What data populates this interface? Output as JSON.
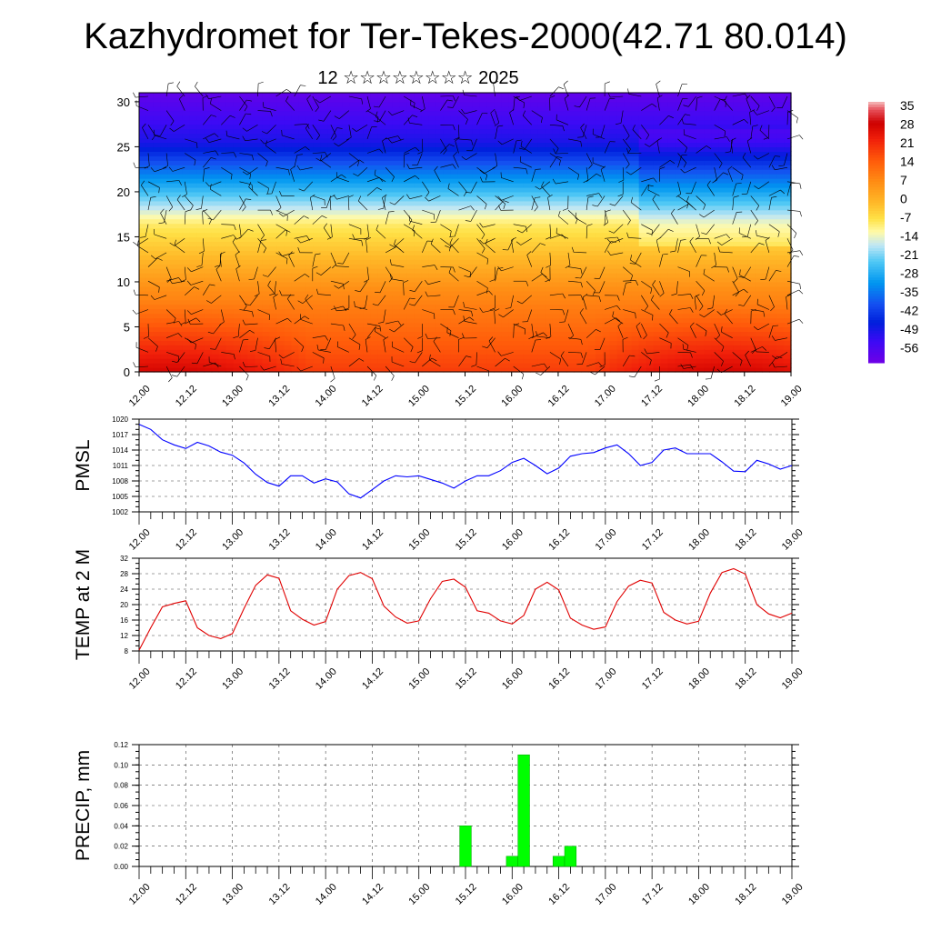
{
  "header": {
    "title": "Kazhydromet for Ter-Tekes-2000(42.71 80.014)",
    "subtitle": "12 ☆☆☆☆☆☆☆☆ 2025"
  },
  "colors": {
    "pmsl_line": "#0000ff",
    "temp_line": "#e00000",
    "precip_bar": "#00ff00",
    "precip_bar_edge": "#00a000"
  },
  "chart_data": [
    {
      "id": "height-profile",
      "type": "heatmap",
      "title": "",
      "xlabel": "",
      "ylabel": "",
      "x_ticks": [
        "12.00",
        "12.12",
        "13.00",
        "13.12",
        "14.00",
        "14.12",
        "15.00",
        "15.12",
        "16.00",
        "16.12",
        "17.00",
        "17.12",
        "18.00",
        "18.12",
        "19.00"
      ],
      "y_ticks": [
        0,
        5,
        10,
        15,
        20,
        25,
        30
      ],
      "ylim": [
        0,
        31
      ],
      "colorbar": {
        "labels": [
          "35",
          "28",
          "21",
          "14",
          "7",
          "0",
          "-7",
          "-14",
          "-21",
          "-28",
          "-35",
          "-42",
          "-49",
          "-56"
        ],
        "range": [
          -60,
          38
        ]
      },
      "wind_barbs": true
    },
    {
      "id": "pmsl",
      "type": "line",
      "ylabel": "PMSL",
      "ylim": [
        1002,
        1020
      ],
      "y_ticks": [
        "1002",
        "1005",
        "1008",
        "1011",
        "1014",
        "1017",
        "1020"
      ],
      "x_ticks": [
        "12.00",
        "12.12",
        "13.00",
        "13.12",
        "14.00",
        "14.12",
        "15.00",
        "15.12",
        "16.00",
        "16.12",
        "17.00",
        "17.12",
        "18.00",
        "18.12",
        "19.00"
      ],
      "x_step_hours": 3,
      "series": [
        {
          "values": [
            1019,
            1018,
            1016,
            1015,
            1014.3,
            1015.5,
            1014.8,
            1013.6,
            1013,
            1011.5,
            1009.3,
            1007.7,
            1007,
            1009,
            1009,
            1007.6,
            1008.4,
            1007.8,
            1005.5,
            1004.7,
            1006.3,
            1008,
            1009,
            1008.8,
            1009,
            1008.3,
            1007.6,
            1006.6,
            1008,
            1009,
            1009,
            1010,
            1011.6,
            1012.4,
            1011,
            1009.4,
            1010.5,
            1012.8,
            1013.3,
            1013.5,
            1014.4,
            1015,
            1013.3,
            1011,
            1011.6,
            1014,
            1014.4,
            1013.3,
            1013.3,
            1013.3,
            1011.7,
            1009.9,
            1009.8,
            1012,
            1011.3,
            1010.3,
            1011
          ]
        }
      ]
    },
    {
      "id": "temp",
      "type": "line",
      "ylabel": "TEMP at 2 M",
      "ylim": [
        8,
        32
      ],
      "y_ticks": [
        "8",
        "12",
        "16",
        "20",
        "24",
        "28",
        "32"
      ],
      "x_ticks": [
        "12.00",
        "12.12",
        "13.00",
        "13.12",
        "14.00",
        "14.12",
        "15.00",
        "15.12",
        "16.00",
        "16.12",
        "17.00",
        "17.12",
        "18.00",
        "18.12",
        "19.00"
      ],
      "x_step_hours": 3,
      "series": [
        {
          "values": [
            8.2,
            14,
            19.4,
            20.3,
            21,
            14,
            12,
            11.2,
            12.5,
            19,
            25,
            27.7,
            26.8,
            18.4,
            16.2,
            14.7,
            15.6,
            24,
            27.5,
            28.3,
            26.7,
            19.6,
            16.8,
            15.2,
            15.8,
            21.5,
            26,
            26.6,
            24.5,
            18.4,
            17.8,
            15.8,
            15,
            17.2,
            24,
            25.8,
            23.8,
            16.5,
            14.7,
            13.6,
            14.2,
            20.8,
            24.8,
            26.3,
            25.6,
            18,
            16,
            15,
            15.7,
            23,
            28.3,
            29.3,
            27.9,
            20,
            17.6,
            16.6,
            17.8
          ]
        }
      ]
    },
    {
      "id": "precip",
      "type": "bar",
      "ylabel": "PRECIP, mm",
      "ylim": [
        0,
        0.12
      ],
      "y_ticks": [
        "0.00",
        "0.02",
        "0.04",
        "0.06",
        "0.08",
        "0.10",
        "0.12"
      ],
      "x_ticks": [
        "12.00",
        "12.12",
        "13.00",
        "13.12",
        "14.00",
        "14.12",
        "15.00",
        "15.12",
        "16.00",
        "16.12",
        "17.00",
        "17.12",
        "18.00",
        "18.12",
        "19.00"
      ],
      "x_step_hours": 3,
      "bars": [
        {
          "step": 28,
          "value": 0.04
        },
        {
          "step": 32,
          "value": 0.01
        },
        {
          "step": 33,
          "value": 0.11
        },
        {
          "step": 36,
          "value": 0.01
        },
        {
          "step": 37,
          "value": 0.02
        }
      ]
    }
  ]
}
